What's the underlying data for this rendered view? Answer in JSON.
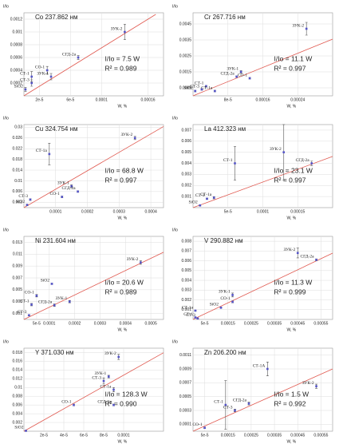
{
  "chart_data": [
    {
      "type": "scatter",
      "title": "Co 237.862 нм",
      "ylabel": "I/Io",
      "xlabel": "W, %",
      "annotations": [
        "I/Io =  7.5 W",
        "R² = 0.989"
      ],
      "grid": true,
      "color": "#5555c8",
      "points": {
        "labels": [
          "SiO2",
          "СТ-1",
          "СТ-3",
          "СО-1",
          "ЗУК-1",
          "СГД-2а",
          "ЗУК-2"
        ],
        "x": [
          2e-06,
          1e-05,
          1e-05,
          3e-05,
          3.5e-05,
          7e-05,
          0.00013
        ],
        "y": [
          0.0001,
          0.0003,
          0.0002,
          0.0004,
          0.0003,
          0.0006,
          0.001
        ],
        "errors": [
          3e-05,
          8e-05,
          5e-05,
          6e-05,
          5e-05,
          3e-05,
          0.00012
        ]
      },
      "fit": {
        "color": "#e0584f",
        "x": [
          0,
          0.00017
        ],
        "y": [
          0,
          0.001275
        ]
      },
      "xlim": [
        0,
        0.00018
      ],
      "ylim": [
        0,
        0.0013
      ],
      "xticks": [
        {
          "value": 2e-05,
          "label": "2e-5"
        },
        {
          "value": 6e-05,
          "label": "6e-5"
        },
        0.0001,
        0.00016
      ],
      "yticks": [
        0.0002,
        0.0004,
        0.0006,
        0.0008,
        0.001,
        0.0012
      ]
    },
    {
      "type": "scatter",
      "title": "Cr 267.716 нм",
      "ylabel": "I/Io",
      "xlabel": "W, %",
      "annotations": [
        "I/Io =  11.1 W",
        "R² = 0.997"
      ],
      "grid": true,
      "color": "#5555c8",
      "points": {
        "labels": [
          "SiO2",
          "СТ-1",
          "СТ-1а",
          "СТ-3",
          "ЗУК-1",
          "СО-1",
          "СГД-2а",
          "ЗУК-2"
        ],
        "x": [
          5e-06,
          3e-05,
          5e-05,
          2e-05,
          0.00011,
          0.00013,
          0.0001,
          0.00026
        ],
        "y": [
          0.0003,
          0.0006,
          0.0003,
          0.0004,
          0.0015,
          0.0011,
          0.0012,
          0.0042
        ],
        "errors": [
          5e-05,
          5e-05,
          5e-05,
          5e-05,
          8e-05,
          5e-05,
          5e-05,
          0.0004
        ]
      },
      "fit": {
        "color": "#e0584f",
        "x": [
          0,
          0.00032
        ],
        "y": [
          0,
          0.003552
        ]
      },
      "xlim": [
        0,
        0.00032
      ],
      "ylim": [
        0,
        0.0052
      ],
      "xticks": [
        {
          "value": 8e-05,
          "label": "8e-5"
        },
        0.00016,
        0.00024
      ],
      "yticks": [
        0.0005,
        0.0015,
        0.0025,
        0.0035,
        0.0045
      ]
    },
    {
      "type": "scatter",
      "title": "Cu 324.754 нм",
      "ylabel": "I/Io",
      "xlabel": "W, %",
      "annotations": [
        "I/Io =  68.8 W",
        "R² = 0.997"
      ],
      "grid": true,
      "color": "#5555c8",
      "points": {
        "labels": [
          "SiO2",
          "СТ-3",
          "СТ-1а",
          "СО-1",
          "ЗУК-1",
          "СГД-2а",
          "ЗУК-2"
        ],
        "x": [
          1e-05,
          2e-05,
          8e-05,
          0.00012,
          0.00015,
          0.00017,
          0.00035
        ],
        "y": [
          0.001,
          0.003,
          0.02,
          0.004,
          0.008,
          0.006,
          0.026
        ],
        "errors": [
          0.0003,
          0.0003,
          0.004,
          0.0003,
          0.0005,
          0.0003,
          0.0006
        ]
      },
      "fit": {
        "color": "#e0584f",
        "x": [
          0,
          0.00044
        ],
        "y": [
          0,
          0.030272
        ]
      },
      "xlim": [
        0,
        0.00044
      ],
      "ylim": [
        0,
        0.031
      ],
      "xticks": [
        0.0001,
        0.0002,
        0.0003,
        0.0004
      ],
      "yticks": [
        0.002,
        0.006,
        0.01,
        0.014,
        0.018,
        0.022,
        0.026,
        0.03
      ]
    },
    {
      "type": "scatter",
      "title": "La 412.323 нм",
      "ylabel": "I/Io",
      "xlabel": "W, %",
      "annotations": [
        "I/Io =  23.1 W",
        "R² = 0.997"
      ],
      "grid": true,
      "color": "#5555c8",
      "points": {
        "labels": [
          "SiO2",
          "СТ-3",
          "СТ-1а",
          "СТ-1",
          "ЗУК-2",
          "СГД-2а"
        ],
        "x": [
          1e-05,
          2e-05,
          3e-05,
          6e-05,
          0.00013,
          0.00017
        ],
        "y": [
          0.0002,
          0.0008,
          0.0009,
          0.004,
          0.005,
          0.004
        ],
        "errors": [
          5e-05,
          5e-05,
          0.0001,
          0.0015,
          0.0025,
          0.0002
        ]
      },
      "fit": {
        "color": "#e0584f",
        "x": [
          0,
          0.0002
        ],
        "y": [
          0,
          0.00462
        ]
      },
      "xlim": [
        0,
        0.0002
      ],
      "ylim": [
        0,
        0.0075
      ],
      "xticks": [
        {
          "value": 5e-05,
          "label": "5e-5"
        },
        0.0001,
        0.00015
      ],
      "yticks": [
        0.001,
        0.002,
        0.003,
        0.004,
        0.005,
        0.006,
        0.007
      ]
    },
    {
      "type": "scatter",
      "title": "Ni 231.604 нм",
      "ylabel": "I/Io",
      "xlabel": "W, %",
      "annotations": [
        "I/Io =  20.6 W",
        "R² = 0.989"
      ],
      "grid": true,
      "color": "#5555c8",
      "points": {
        "labels": [
          "СТ-3",
          "СТ-1",
          "СО-1",
          "SiO2",
          "СГД-2а",
          "ЗУК-1",
          "ЗУК-2"
        ],
        "x": [
          2e-05,
          3e-05,
          5e-05,
          0.00011,
          0.00012,
          0.00018,
          0.00046
        ],
        "y": [
          0.0007,
          0.0025,
          0.004,
          0.006,
          0.0024,
          0.003,
          0.0096
        ],
        "errors": [
          0.0001,
          0.0002,
          0.0002,
          0.0001,
          0.0002,
          0.0002,
          0.0003
        ]
      },
      "fit": {
        "color": "#e0584f",
        "x": [
          0,
          0.00055
        ],
        "y": [
          0,
          0.01133
        ]
      },
      "xlim": [
        0,
        0.00055
      ],
      "ylim": [
        0,
        0.014
      ],
      "xticks": [
        {
          "value": 5e-05,
          "label": "5e-5"
        },
        0.0001,
        0.0002,
        0.0003,
        0.0004,
        0.0005
      ],
      "yticks": [
        0.001,
        0.003,
        0.005,
        0.007,
        0.009,
        0.011,
        0.013
      ]
    },
    {
      "type": "scatter",
      "title": "V 290.882 нм",
      "ylabel": "I/Io",
      "xlabel": "W, %",
      "annotations": [
        "I/Io =  11.3 W",
        "R² = 0.999"
      ],
      "grid": true,
      "color": "#5555c8",
      "points": {
        "labels": [
          "СТ-1",
          "СТ-1а",
          "СТ-3",
          "SiO2",
          "СО-1",
          "ЗУК-1",
          "СГД-2а",
          "ЗУК-2"
        ],
        "x": [
          1e-05,
          1e-05,
          2e-05,
          0.00012,
          0.00017,
          0.00017,
          0.00053,
          0.00045
        ],
        "y": [
          0.0002,
          0.0009,
          0.0001,
          0.0012,
          0.0018,
          0.0025,
          0.0061,
          0.0068
        ],
        "errors": [
          5e-05,
          5e-05,
          5e-05,
          5e-05,
          0.0001,
          0.0002,
          0.0001,
          0.0005
        ]
      },
      "fit": {
        "color": "#e0584f",
        "x": [
          0,
          0.0006
        ],
        "y": [
          0,
          0.00678
        ]
      },
      "xlim": [
        0,
        0.0006
      ],
      "ylim": [
        0,
        0.0085
      ],
      "xticks": [
        {
          "value": 5e-05,
          "label": "5e-5"
        },
        0.00015,
        0.00025,
        0.00035,
        0.00045,
        0.00055
      ],
      "yticks": [
        0.001,
        0.002,
        0.003,
        0.004,
        0.005,
        0.006,
        0.007,
        0.008
      ]
    },
    {
      "type": "scatter",
      "title": "Y 371.030 нм",
      "ylabel": "I/Io",
      "xlabel": "W, %",
      "annotations": [
        "I/Io =  128.3 W",
        "R² = 0.990"
      ],
      "grid": true,
      "color": "#5555c8",
      "points": {
        "labels": [
          "SiO2",
          "СО-1",
          "СГД-2а",
          "СТ-1а",
          "СТ-3",
          "ЗУК-1",
          "ЗУК-2"
        ],
        "x": [
          2e-06,
          5e-05,
          9e-05,
          9e-05,
          8e-05,
          8.5e-05,
          9.5e-05
        ],
        "y": [
          0.0001,
          0.006,
          0.006,
          0.0095,
          0.0115,
          0.0125,
          0.017
        ],
        "errors": [
          0.0001,
          0.0002,
          0.0002,
          0.0005,
          0.0007,
          0.0003,
          0.0006
        ]
      },
      "fit": {
        "color": "#e0584f",
        "x": [
          0,
          0.00014
        ],
        "y": [
          0,
          0.017962
        ]
      },
      "xlim": [
        0,
        0.00014
      ],
      "ylim": [
        0,
        0.019
      ],
      "xticks": [
        {
          "value": 2e-05,
          "label": "2e-5"
        },
        {
          "value": 4e-05,
          "label": "4e-5"
        },
        {
          "value": 6e-05,
          "label": "6e-5"
        },
        {
          "value": 8e-05,
          "label": "8e-5"
        },
        0.0001
      ],
      "yticks": [
        0.002,
        0.004,
        0.006,
        0.008,
        0.01,
        0.012,
        0.014,
        0.016,
        0.018
      ]
    },
    {
      "type": "scatter",
      "title": "Zn 206.200 нм",
      "ylabel": "I/Io",
      "xlabel": "W, %",
      "annotations": [
        "I/Io = 1.5 W",
        "R² = 0.992"
      ],
      "grid": true,
      "color": "#5555c8",
      "points": {
        "labels": [
          "СО-1",
          "СТ-1",
          "СТ-3",
          "СГД-2а",
          "СТ-1А",
          "ЗУК-2"
        ],
        "x": [
          5e-05,
          0.00014,
          0.00018,
          0.00024,
          0.00032,
          0.00053
        ],
        "y": [
          5e-05,
          0.00038,
          0.0003,
          0.0004,
          0.0009,
          0.00065
        ],
        "errors": [
          1e-05,
          0.00035,
          2e-05,
          2e-05,
          0.0001,
          3e-05
        ]
      },
      "fit": {
        "color": "#e0584f",
        "x": [
          0,
          0.0006
        ],
        "y": [
          0,
          0.0009
        ]
      },
      "xlim": [
        0,
        0.0006
      ],
      "ylim": [
        0,
        0.0012
      ],
      "xticks": [
        {
          "value": 5e-05,
          "label": "5e-5"
        },
        0.00015,
        0.00025,
        0.00035,
        0.00045,
        0.00055
      ],
      "yticks": [
        0.0001,
        0.0003,
        0.0005,
        0.0007,
        0.0009,
        0.0011
      ]
    }
  ]
}
